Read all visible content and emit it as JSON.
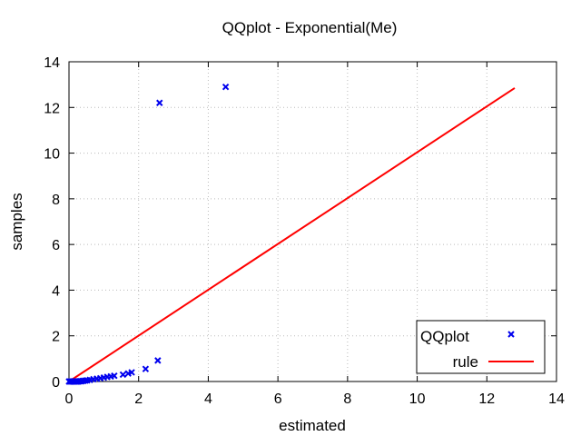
{
  "chart_data": {
    "type": "scatter",
    "title": "QQplot - Exponential(Me)",
    "xlabel": "estimated",
    "ylabel": "samples",
    "xlim": [
      0,
      14
    ],
    "ylim": [
      0,
      14
    ],
    "xticks": [
      "0",
      "2",
      "4",
      "6",
      "8",
      "10",
      "12",
      "14"
    ],
    "yticks": [
      "0",
      "2",
      "4",
      "6",
      "8",
      "10",
      "12",
      "14"
    ],
    "grid": true,
    "legend_position": "bottom-right",
    "series": [
      {
        "name": "QQplot",
        "type": "scatter",
        "marker": "x",
        "color": "#0000ee",
        "points": [
          [
            0.0,
            0.0
          ],
          [
            0.03,
            0.0
          ],
          [
            0.06,
            0.0
          ],
          [
            0.09,
            0.0
          ],
          [
            0.12,
            0.0
          ],
          [
            0.15,
            0.0
          ],
          [
            0.18,
            0.0
          ],
          [
            0.21,
            0.0
          ],
          [
            0.24,
            0.0
          ],
          [
            0.27,
            0.0
          ],
          [
            0.3,
            0.01
          ],
          [
            0.34,
            0.01
          ],
          [
            0.38,
            0.02
          ],
          [
            0.42,
            0.03
          ],
          [
            0.47,
            0.04
          ],
          [
            0.52,
            0.05
          ],
          [
            0.6,
            0.07
          ],
          [
            0.7,
            0.1
          ],
          [
            0.8,
            0.12
          ],
          [
            0.9,
            0.14
          ],
          [
            1.0,
            0.17
          ],
          [
            1.1,
            0.2
          ],
          [
            1.2,
            0.22
          ],
          [
            1.3,
            0.25
          ],
          [
            1.55,
            0.3
          ],
          [
            1.7,
            0.35
          ],
          [
            1.8,
            0.4
          ],
          [
            2.2,
            0.55
          ],
          [
            2.55,
            0.92
          ],
          [
            2.6,
            12.2
          ],
          [
            4.5,
            12.9
          ]
        ]
      },
      {
        "name": "rule",
        "type": "line",
        "color": "#ff0000",
        "points": [
          [
            0,
            0
          ],
          [
            12.8,
            12.85
          ]
        ]
      }
    ]
  }
}
